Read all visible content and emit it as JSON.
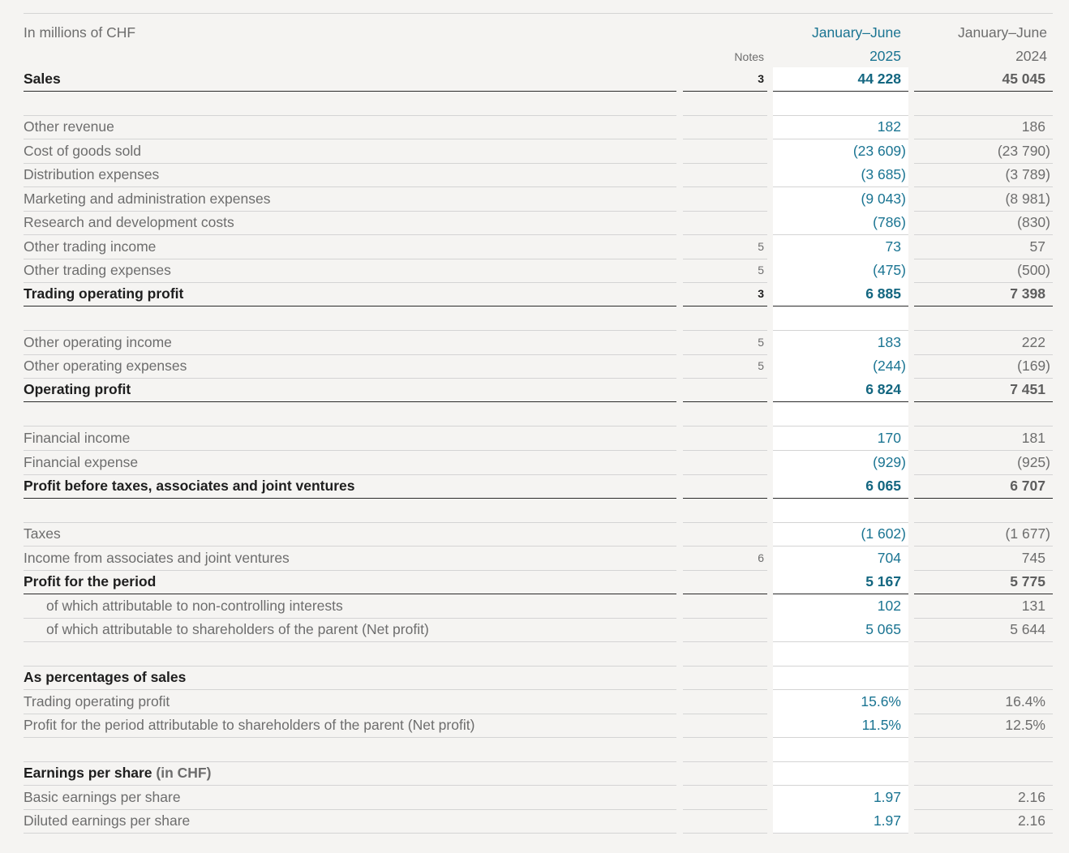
{
  "header": {
    "unit_label": "In millions of CHF",
    "notes_label": "Notes",
    "current_period_label": "January–June",
    "current_year": "2025",
    "prior_period_label": "January–June",
    "prior_year": "2024"
  },
  "rows": [
    {
      "label": "Sales",
      "note": "3",
      "cur": "44 228",
      "prev": "45 045",
      "bold": true
    },
    {
      "label": "Other revenue",
      "note": "",
      "cur": "182",
      "prev": "186"
    },
    {
      "label": "Cost of goods sold",
      "note": "",
      "cur": "(23 609)",
      "prev": "(23 790)"
    },
    {
      "label": "Distribution expenses",
      "note": "",
      "cur": "(3 685)",
      "prev": "(3 789)"
    },
    {
      "label": "Marketing and administration expenses",
      "note": "",
      "cur": "(9 043)",
      "prev": "(8 981)"
    },
    {
      "label": "Research and development costs",
      "note": "",
      "cur": "(786)",
      "prev": "(830)"
    },
    {
      "label": "Other trading income",
      "note": "5",
      "cur": "73",
      "prev": "57"
    },
    {
      "label": "Other trading expenses",
      "note": "5",
      "cur": "(475)",
      "prev": "(500)"
    },
    {
      "label": "Trading operating profit",
      "note": "3",
      "cur": "6 885",
      "prev": "7 398",
      "bold": true
    },
    {
      "label": "Other operating income",
      "note": "5",
      "cur": "183",
      "prev": "222"
    },
    {
      "label": "Other operating expenses",
      "note": "5",
      "cur": "(244)",
      "prev": "(169)"
    },
    {
      "label": "Operating profit",
      "note": "",
      "cur": "6 824",
      "prev": "7 451",
      "bold": true
    },
    {
      "label": "Financial income",
      "note": "",
      "cur": "170",
      "prev": "181"
    },
    {
      "label": "Financial expense",
      "note": "",
      "cur": "(929)",
      "prev": "(925)"
    },
    {
      "label": "Profit before taxes, associates and joint ventures",
      "note": "",
      "cur": "6 065",
      "prev": "6 707",
      "bold": true
    },
    {
      "label": "Taxes",
      "note": "",
      "cur": "(1 602)",
      "prev": "(1 677)"
    },
    {
      "label": "Income from associates and joint ventures",
      "note": "6",
      "cur": "704",
      "prev": "745"
    },
    {
      "label": "Profit for the period",
      "note": "",
      "cur": "5 167",
      "prev": "5 775",
      "bold": true
    },
    {
      "label": "of which attributable to non-controlling interests",
      "note": "",
      "cur": "102",
      "prev": "131",
      "indent": true
    },
    {
      "label": "of which attributable to shareholders of the parent (Net profit)",
      "note": "",
      "cur": "5 065",
      "prev": "5 644",
      "indent": true
    },
    {
      "label": "As percentages of sales",
      "note": "",
      "cur": "",
      "prev": "",
      "bold": true
    },
    {
      "label": "Trading operating profit",
      "note": "",
      "cur": "15.6%",
      "prev": "16.4%"
    },
    {
      "label": "Profit for the period attributable to shareholders of the parent (Net profit)",
      "note": "",
      "cur": "11.5%",
      "prev": "12.5%"
    },
    {
      "label": "Earnings per share",
      "label_suffix": " (in CHF)",
      "note": "",
      "cur": "",
      "prev": "",
      "bold": true
    },
    {
      "label": "Basic earnings per share",
      "note": "",
      "cur": "1.97",
      "prev": "2.16"
    },
    {
      "label": "Diluted earnings per share",
      "note": "",
      "cur": "1.97",
      "prev": "2.16"
    }
  ]
}
